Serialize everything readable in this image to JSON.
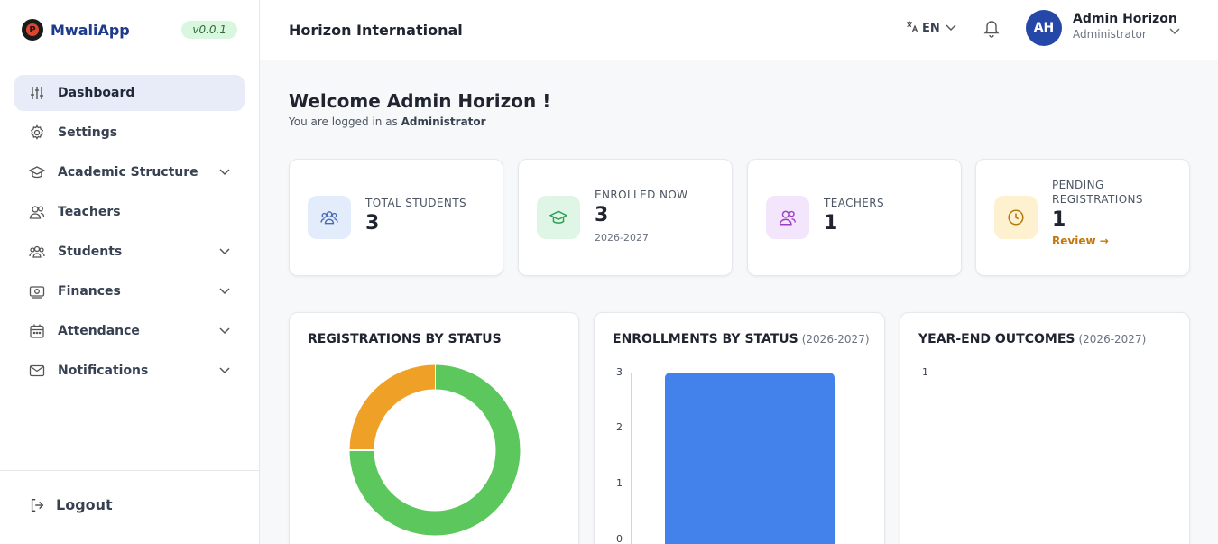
{
  "app": {
    "name": "MwaliApp",
    "version": "v0.0.1"
  },
  "sidebar": {
    "items": [
      {
        "label": "Dashboard",
        "icon": "sliders-icon",
        "active": true,
        "expandable": false
      },
      {
        "label": "Settings",
        "icon": "gear-icon",
        "active": false,
        "expandable": false
      },
      {
        "label": "Academic Structure",
        "icon": "graduation-cap-icon",
        "active": false,
        "expandable": true
      },
      {
        "label": "Teachers",
        "icon": "users-icon",
        "active": false,
        "expandable": false
      },
      {
        "label": "Students",
        "icon": "students-icon",
        "active": false,
        "expandable": true
      },
      {
        "label": "Finances",
        "icon": "money-icon",
        "active": false,
        "expandable": true
      },
      {
        "label": "Attendance",
        "icon": "calendar-icon",
        "active": false,
        "expandable": true
      },
      {
        "label": "Notifications",
        "icon": "mail-icon",
        "active": false,
        "expandable": true
      }
    ],
    "logout": "Logout"
  },
  "header": {
    "org_name": "Horizon International",
    "language": "EN",
    "user": {
      "initials": "AH",
      "name": "Admin Horizon",
      "role": "Administrator"
    }
  },
  "welcome": {
    "title": "Welcome Admin Horizon !",
    "logged_prefix": "You are logged in as",
    "logged_role": "Administrator"
  },
  "stats": [
    {
      "label": "TOTAL STUDENTS",
      "value": "3",
      "icon": "students-icon",
      "color": "#e3ecfb",
      "iconColor": "#4b6cb7"
    },
    {
      "label": "ENROLLED NOW",
      "value": "3",
      "sub": "2026-2027",
      "icon": "graduation-cap-icon",
      "color": "#dff6e6",
      "iconColor": "#2f9e55"
    },
    {
      "label": "TEACHERS",
      "value": "1",
      "icon": "users-icon",
      "color": "#f3e5fb",
      "iconColor": "#9b3fc8"
    },
    {
      "label_line1": "PENDING",
      "label_line2": "REGISTRATIONS",
      "value": "1",
      "link": "Review →",
      "icon": "clock-icon",
      "color": "#fdf1cf",
      "iconColor": "#b07d10"
    }
  ],
  "cards": {
    "registrations": {
      "title": "REGISTRATIONS BY STATUS"
    },
    "enrollments": {
      "title": "ENROLLMENTS BY STATUS",
      "year": "(2026-2027)"
    },
    "outcomes": {
      "title": "YEAR-END OUTCOMES",
      "year": "(2026-2027)"
    }
  },
  "chart_data": [
    {
      "type": "pie",
      "title": "REGISTRATIONS BY STATUS",
      "slices": [
        {
          "value": 3,
          "color": "#5cc75c"
        },
        {
          "value": 1,
          "color": "#eea027"
        }
      ]
    },
    {
      "type": "bar",
      "title": "ENROLLMENTS BY STATUS",
      "subtitle": "(2026-2027)",
      "values": [
        3
      ],
      "yticks": [
        "3",
        "2",
        "1",
        "0"
      ],
      "ylim": [
        0,
        3
      ],
      "color": "#4482eb"
    },
    {
      "type": "bar",
      "title": "YEAR-END OUTCOMES",
      "subtitle": "(2026-2027)",
      "values": [],
      "yticks": [
        "1"
      ],
      "ylim": [
        0,
        1
      ]
    }
  ]
}
